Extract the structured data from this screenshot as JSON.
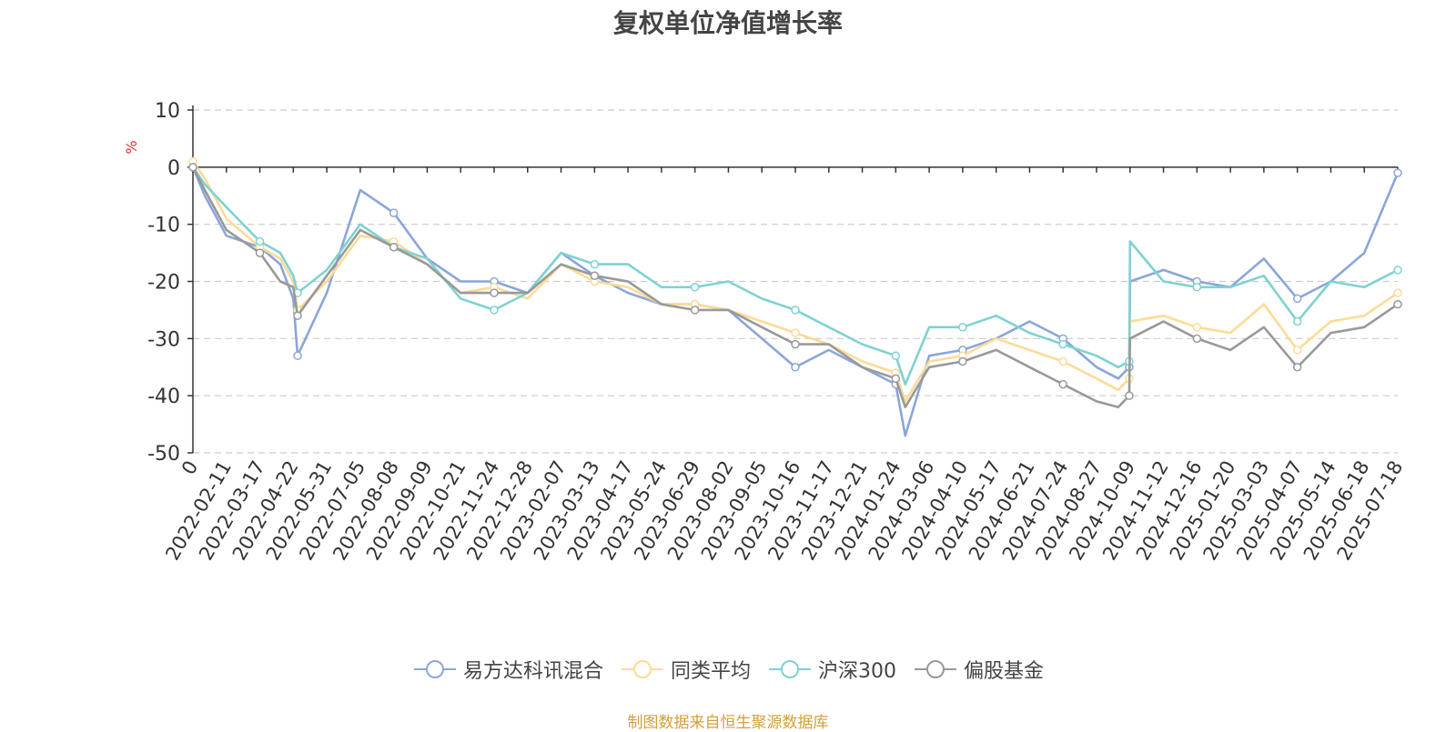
{
  "chart_data": {
    "type": "line",
    "title": "复权单位净值增长率",
    "ylabel": "%",
    "ylim": [
      -50,
      10
    ],
    "yticks": [
      10,
      0,
      -10,
      -20,
      -30,
      -40,
      -50
    ],
    "grid": true,
    "legend_position": "bottom",
    "x_tick_labels": [
      "0",
      "2022-02-11",
      "2022-03-17",
      "2022-04-22",
      "2022-05-31",
      "2022-07-05",
      "2022-08-08",
      "2022-09-09",
      "2022-10-21",
      "2022-11-24",
      "2022-12-28",
      "2023-02-07",
      "2023-03-13",
      "2023-04-17",
      "2023-05-24",
      "2023-06-29",
      "2023-08-02",
      "2023-09-05",
      "2023-10-16",
      "2023-11-17",
      "2023-12-21",
      "2024-01-24",
      "2024-03-06",
      "2024-04-10",
      "2024-05-17",
      "2024-06-21",
      "2024-07-24",
      "2024-08-27",
      "2024-10-09",
      "2024-11-12",
      "2024-12-16",
      "2025-01-20",
      "2025-03-03",
      "2025-04-07",
      "2025-05-14",
      "2025-06-18",
      "2025-07-18"
    ],
    "x": [
      "0",
      "2022-01",
      "2022-02-11",
      "2022-03-17",
      "2022-04-08",
      "2022-04-22",
      "2022-04-27",
      "2022-05-31",
      "2022-07-05",
      "2022-08-08",
      "2022-09-09",
      "2022-10-21",
      "2022-11-24",
      "2022-12-28",
      "2023-02-07",
      "2023-03-13",
      "2023-04-17",
      "2023-05-24",
      "2023-06-29",
      "2023-08-02",
      "2023-09-05",
      "2023-10-16",
      "2023-11-17",
      "2023-12-21",
      "2024-01-24",
      "2024-02-05",
      "2024-03-06",
      "2024-04-10",
      "2024-05-17",
      "2024-06-21",
      "2024-07-24",
      "2024-08-27",
      "2024-09-24",
      "2024-10-08",
      "2024-10-09",
      "2024-11-12",
      "2024-12-16",
      "2025-01-20",
      "2025-03-03",
      "2025-04-07",
      "2025-05-14",
      "2025-06-18",
      "2025-07-18"
    ],
    "series": [
      {
        "name": "易方达科讯混合",
        "color": "#8ba6d9",
        "values": [
          0,
          -5,
          -12,
          -14,
          -17,
          -23,
          -33,
          -22,
          -4,
          -8,
          -16,
          -20,
          -20,
          -22,
          -15,
          -19,
          -22,
          -24,
          -24,
          -25,
          -30,
          -35,
          -32,
          -35,
          -38,
          -47,
          -33,
          -32,
          -30,
          -27,
          -30,
          -35,
          -37,
          -35,
          -20,
          -18,
          -20,
          -21,
          -16,
          -23,
          -20,
          -15,
          -1
        ]
      },
      {
        "name": "同类平均",
        "color": "#fddb96",
        "values": [
          1,
          -2,
          -9,
          -14,
          -16,
          -20,
          -25,
          -20,
          -12,
          -13,
          -17,
          -22,
          -21,
          -23,
          -17,
          -20,
          -21,
          -24,
          -24,
          -25,
          -27,
          -29,
          -31,
          -34,
          -36,
          -41,
          -34,
          -33,
          -30,
          -32,
          -34,
          -37,
          -39,
          -37,
          -27,
          -26,
          -28,
          -29,
          -24,
          -32,
          -27,
          -26,
          -22
        ]
      },
      {
        "name": "沪深300",
        "color": "#7fd2d1",
        "values": [
          0,
          -3,
          -7,
          -13,
          -15,
          -19,
          -22,
          -18,
          -10,
          -14,
          -16,
          -23,
          -25,
          -22,
          -15,
          -17,
          -17,
          -21,
          -21,
          -20,
          -23,
          -25,
          -28,
          -31,
          -33,
          -38,
          -28,
          -28,
          -26,
          -29,
          -31,
          -33,
          -35,
          -34,
          -13,
          -20,
          -21,
          -21,
          -19,
          -27,
          -20,
          -21,
          -18
        ]
      },
      {
        "name": "偏股基金",
        "color": "#999999",
        "values": [
          0,
          -4,
          -11,
          -15,
          -20,
          -21,
          -26,
          -19,
          -11,
          -14,
          -17,
          -22,
          -22,
          -22,
          -17,
          -19,
          -20,
          -24,
          -25,
          -25,
          -28,
          -31,
          -31,
          -35,
          -37,
          -42,
          -35,
          -34,
          -32,
          -35,
          -38,
          -41,
          -42,
          -40,
          -30,
          -27,
          -30,
          -32,
          -28,
          -35,
          -29,
          -28,
          -24
        ]
      }
    ]
  },
  "source_text": "制图数据来自恒生聚源数据库"
}
